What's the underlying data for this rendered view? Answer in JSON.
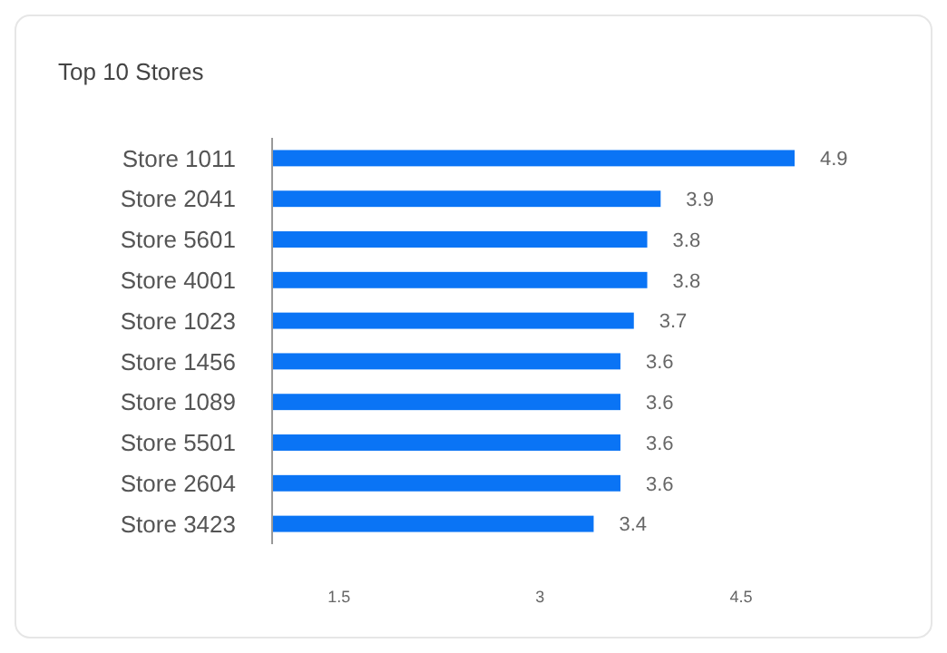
{
  "chart_data": {
    "type": "bar",
    "orientation": "horizontal",
    "title": "Top 10 Stores",
    "categories": [
      "Store 1011",
      "Store 2041",
      "Store 5601",
      "Store 4001",
      "Store 1023",
      "Store 1456",
      "Store 1089",
      "Store 5501",
      "Store 2604",
      "Store 3423"
    ],
    "values": [
      4.9,
      3.9,
      3.8,
      3.8,
      3.7,
      3.6,
      3.6,
      3.6,
      3.6,
      3.4
    ],
    "color": "#0a74f5",
    "xlim": [
      1,
      4.9
    ],
    "xticks": [
      1.5,
      3,
      4.5
    ],
    "data_labels": true
  }
}
